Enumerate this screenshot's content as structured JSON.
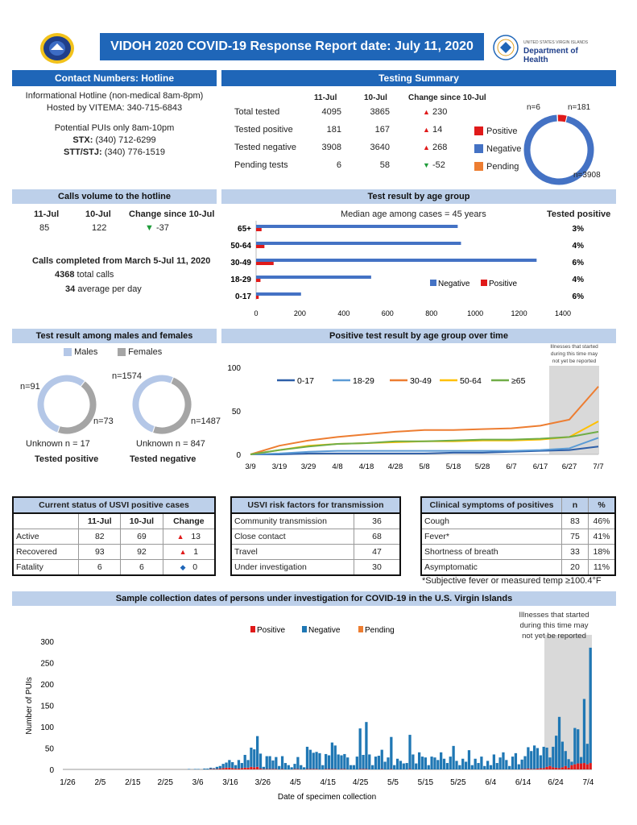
{
  "header": {
    "title": "VIDOH 2020 COVID-19 Response Report date: July 11, 2020",
    "doh_line1": "UNITED STATES VIRGIN ISLANDS",
    "doh_line2": "Department of Health"
  },
  "hotline": {
    "title": "Contact Numbers: Hotline",
    "line1": "Informational Hotline (non-medical 8am-8pm)",
    "line2": "Hosted by VITEMA: 340-715-6843",
    "line3": "Potential PUIs only 8am-10pm",
    "stx_label": "STX:",
    "stx_num": "(340) 712-6299",
    "stt_label": "STT/STJ:",
    "stt_num": "(340) 776-1519"
  },
  "testing": {
    "title": "Testing Summary",
    "col1": "11-Jul",
    "col2": "10-Jul",
    "col3": "Change since 10-Jul",
    "rows": [
      {
        "label": "Total tested",
        "a": "4095",
        "b": "3865",
        "change": "230",
        "dir": "up"
      },
      {
        "label": "Tested positive",
        "a": "181",
        "b": "167",
        "change": "14",
        "dir": "up"
      },
      {
        "label": "Tested negative",
        "a": "3908",
        "b": "3640",
        "change": "268",
        "dir": "up"
      },
      {
        "label": "Pending tests",
        "a": "6",
        "b": "58",
        "change": "-52",
        "dir": "down"
      }
    ],
    "legend": [
      "Positive",
      "Negative",
      "Pending"
    ],
    "donut": {
      "pending": 6,
      "positive": 181,
      "negative": 3908,
      "lbl_pending": "n=6",
      "lbl_positive": "n=181",
      "lbl_negative": "n=3908"
    },
    "colors": {
      "positive": "#e01a1a",
      "negative": "#4472c4",
      "pending": "#ed7d31"
    }
  },
  "calls": {
    "title": "Calls volume to the hotline",
    "h1": "11-Jul",
    "h2": "10-Jul",
    "h3": "Change since 10-Jul",
    "v1": "85",
    "v2": "122",
    "v3": "-37",
    "completed": "Calls completed from March 5-Jul 11, 2020",
    "total_n": "4368",
    "total_lbl": "total calls",
    "avg_n": "34",
    "avg_lbl": "average per day"
  },
  "age": {
    "title": "Test result by age group",
    "median": "Median age among cases = 45 years",
    "tested_pos_hdr": "Tested positive",
    "chart_data": {
      "type": "bar",
      "categories": [
        "65+",
        "50-64",
        "30-49",
        "18-29",
        "0-17"
      ],
      "series": [
        {
          "name": "Negative",
          "values": [
            920,
            935,
            1280,
            525,
            205
          ]
        },
        {
          "name": "Positive",
          "values": [
            25,
            38,
            80,
            20,
            12
          ]
        }
      ],
      "pct": [
        "3%",
        "4%",
        "6%",
        "4%",
        "6%"
      ],
      "xlim": [
        0,
        1400
      ],
      "xticks": [
        "0",
        "200",
        "400",
        "600",
        "800",
        "1000",
        "1200",
        "1400"
      ]
    }
  },
  "sex": {
    "title": "Test result among males and females",
    "legend_m": "Males",
    "legend_f": "Females",
    "pos": {
      "m": 91,
      "f": 73,
      "lbl_m": "n=91",
      "lbl_f": "n=73",
      "unknown": "Unknown n = 17",
      "caption": "Tested positive"
    },
    "neg": {
      "m": 1574,
      "f": 1487,
      "lbl_m": "n=1574",
      "lbl_f": "n=1487",
      "unknown": "Unknown n = 847",
      "caption": "Tested negative"
    },
    "colors": {
      "m": "#b4c7e7",
      "f": "#a5a5a5"
    }
  },
  "timeline": {
    "title": "Positive test result by age group over time",
    "note": [
      "Illnesses that started",
      "during this time may",
      "not yet be reported"
    ],
    "chart_data": {
      "type": "line",
      "x": [
        "3/9",
        "3/19",
        "3/29",
        "4/8",
        "4/18",
        "4/28",
        "5/8",
        "5/18",
        "5/28",
        "6/7",
        "6/17",
        "6/27",
        "7/7"
      ],
      "ylim": [
        0,
        100
      ],
      "yticks": [
        "0",
        "50",
        "100"
      ],
      "series": [
        {
          "name": "0-17",
          "color": "#2e5fa8",
          "values": [
            0,
            0,
            1,
            1,
            1,
            1,
            1,
            2,
            2,
            3,
            4,
            5,
            9
          ]
        },
        {
          "name": "18-29",
          "color": "#5b9bd5",
          "values": [
            0,
            1,
            3,
            4,
            4,
            4,
            4,
            4,
            4,
            4,
            5,
            7,
            19
          ]
        },
        {
          "name": "30-49",
          "color": "#ed7d31",
          "values": [
            0,
            10,
            16,
            20,
            23,
            26,
            28,
            28,
            29,
            30,
            33,
            40,
            78
          ]
        },
        {
          "name": "50-64",
          "color": "#ffc000",
          "values": [
            0,
            5,
            10,
            12,
            13,
            14,
            15,
            15,
            16,
            16,
            17,
            20,
            38
          ]
        },
        {
          "name": "≥65",
          "color": "#70ad47",
          "values": [
            0,
            5,
            9,
            12,
            13,
            15,
            15,
            16,
            17,
            17,
            18,
            20,
            26
          ]
        }
      ]
    }
  },
  "status": {
    "title": "Current status of USVI positive cases",
    "h1": "11-Jul",
    "h2": "10-Jul",
    "h3": "Change",
    "rows": [
      {
        "label": "Active",
        "a": "82",
        "b": "69",
        "c": "13",
        "dir": "up"
      },
      {
        "label": "Recovered",
        "a": "93",
        "b": "92",
        "c": "1",
        "dir": "up"
      },
      {
        "label": "Fatality",
        "a": "6",
        "b": "6",
        "c": "0",
        "dir": "side"
      }
    ]
  },
  "risk": {
    "title": "USVI risk factors for transmission",
    "rows": [
      {
        "label": "Community transmission",
        "v": "36"
      },
      {
        "label": "Close contact",
        "v": "68"
      },
      {
        "label": "Travel",
        "v": "47"
      },
      {
        "label": "Under investigation",
        "v": "30"
      }
    ]
  },
  "symptoms": {
    "title": "Clinical symptoms of positives",
    "hn": "n",
    "hp": "%",
    "rows": [
      {
        "label": "Cough",
        "n": "83",
        "p": "46%"
      },
      {
        "label": "Fever*",
        "n": "75",
        "p": "41%"
      },
      {
        "label": "Shortness of breath",
        "n": "33",
        "p": "18%"
      },
      {
        "label": "Asymptomatic",
        "n": "20",
        "p": "11%"
      }
    ],
    "note": "*Subjective fever or measured temp ≥100.4°F"
  },
  "pui": {
    "title": "Sample collection dates of persons under investigation for COVID-19 in the U.S. Virgin Islands",
    "note": [
      "Illnesses that started",
      "during this time may",
      "not yet be reported"
    ],
    "chart_data": {
      "type": "bar",
      "legend": [
        "Positive",
        "Negative",
        "Pending"
      ],
      "colors": [
        "#e01a1a",
        "#1f77b4",
        "#ed7d31"
      ],
      "xlabel": "Date of specimen collection",
      "ylabel": "Number of PUIs",
      "ylim": [
        0,
        300
      ],
      "yticks": [
        "0",
        "50",
        "100",
        "150",
        "200",
        "250",
        "300"
      ],
      "xticks": [
        "1/26",
        "2/5",
        "2/15",
        "2/25",
        "3/6",
        "3/16",
        "3/26",
        "4/5",
        "4/15",
        "4/25",
        "5/5",
        "5/15",
        "5/25",
        "6/4",
        "6/14",
        "6/24",
        "7/4"
      ],
      "negative": [
        0,
        0,
        0,
        0,
        0,
        0,
        0,
        0,
        0,
        0,
        0,
        0,
        0,
        0,
        0,
        0,
        0,
        0,
        0,
        0,
        0,
        0,
        0,
        0,
        0,
        0,
        0,
        0,
        0,
        0,
        0,
        0,
        0,
        0,
        0,
        0,
        0,
        0,
        0,
        0,
        1,
        0,
        1,
        1,
        0,
        2,
        2,
        3,
        2,
        5,
        6,
        10,
        12,
        18,
        14,
        8,
        20,
        12,
        30,
        18,
        45,
        42,
        72,
        35,
        5,
        30,
        30,
        20,
        28,
        8,
        30,
        15,
        10,
        5,
        12,
        28,
        10,
        5,
        52,
        45,
        38,
        40,
        38,
        10,
        35,
        32,
        62,
        55,
        35,
        32,
        35,
        28,
        10,
        10,
        30,
        95,
        33,
        110,
        35,
        10,
        30,
        32,
        45,
        18,
        28,
        75,
        10,
        25,
        20,
        14,
        15,
        80,
        35,
        14,
        40,
        30,
        28,
        10,
        30,
        28,
        22,
        40,
        25,
        15,
        30,
        55,
        20,
        10,
        25,
        18,
        45,
        10,
        25,
        15,
        30,
        8,
        20,
        10,
        35,
        15,
        28,
        40,
        22,
        8,
        30,
        38,
        12,
        22,
        30,
        50,
        42,
        55,
        48,
        30,
        50,
        45,
        20,
        48,
        75,
        120,
        60,
        35,
        20,
        8,
        85,
        80,
        15,
        150,
        48,
        270
      ],
      "positive": [
        0,
        0,
        0,
        0,
        0,
        0,
        0,
        0,
        0,
        0,
        0,
        0,
        0,
        0,
        0,
        0,
        0,
        0,
        0,
        0,
        0,
        0,
        0,
        0,
        0,
        0,
        0,
        0,
        0,
        0,
        0,
        0,
        0,
        0,
        0,
        0,
        0,
        0,
        0,
        0,
        0,
        0,
        0,
        0,
        0,
        0,
        0,
        1,
        1,
        1,
        2,
        3,
        4,
        4,
        3,
        2,
        2,
        3,
        4,
        4,
        6,
        5,
        6,
        2,
        1,
        1,
        1,
        1,
        1,
        0,
        1,
        0,
        0,
        0,
        1,
        1,
        0,
        0,
        1,
        1,
        1,
        1,
        0,
        0,
        1,
        1,
        1,
        1,
        0,
        1,
        1,
        0,
        0,
        0,
        0,
        1,
        1,
        1,
        0,
        0,
        0,
        0,
        1,
        0,
        0,
        1,
        0,
        0,
        0,
        0,
        0,
        1,
        0,
        0,
        0,
        0,
        0,
        0,
        0,
        0,
        0,
        0,
        0,
        0,
        0,
        0,
        0,
        0,
        0,
        0,
        0,
        0,
        0,
        0,
        0,
        0,
        0,
        0,
        0,
        0,
        0,
        0,
        0,
        0,
        0,
        0,
        0,
        1,
        1,
        2,
        1,
        1,
        2,
        3,
        3,
        6,
        8,
        5,
        4,
        3,
        5,
        8,
        4,
        10,
        12,
        14,
        14,
        15,
        12,
        15,
        16,
        15
      ],
      "pending": [
        0,
        0,
        0,
        0,
        0,
        0,
        0,
        0,
        0,
        0,
        0,
        0,
        0,
        0,
        0,
        0,
        0,
        0,
        0,
        0,
        0,
        0,
        0,
        0,
        0,
        0,
        0,
        0,
        0,
        0,
        0,
        0,
        0,
        0,
        0,
        0,
        0,
        0,
        0,
        0,
        0,
        0,
        0,
        0,
        0,
        0,
        0,
        0,
        0,
        0,
        0,
        0,
        0,
        0,
        0,
        0,
        0,
        0,
        0,
        0,
        0,
        0,
        0,
        0,
        0,
        0,
        0,
        0,
        0,
        0,
        0,
        0,
        0,
        0,
        0,
        0,
        0,
        0,
        0,
        0,
        0,
        0,
        0,
        0,
        0,
        0,
        0,
        0,
        0,
        0,
        0,
        0,
        0,
        0,
        0,
        0,
        0,
        0,
        0,
        0,
        0,
        0,
        0,
        0,
        0,
        0,
        0,
        0,
        0,
        0,
        0,
        0,
        0,
        0,
        0,
        0,
        0,
        0,
        0,
        0,
        0,
        0,
        0,
        0,
        0,
        0,
        0,
        0,
        0,
        0,
        0,
        0,
        0,
        0,
        0,
        0,
        0,
        0,
        0,
        0,
        0,
        0,
        0,
        0,
        0,
        0,
        0,
        0,
        0,
        0,
        0,
        0,
        0,
        0,
        0,
        0,
        0,
        0,
        0,
        0,
        0,
        0,
        0,
        0,
        0,
        0,
        0,
        0,
        0,
        0,
        0,
        1,
        2,
        3
      ]
    }
  }
}
